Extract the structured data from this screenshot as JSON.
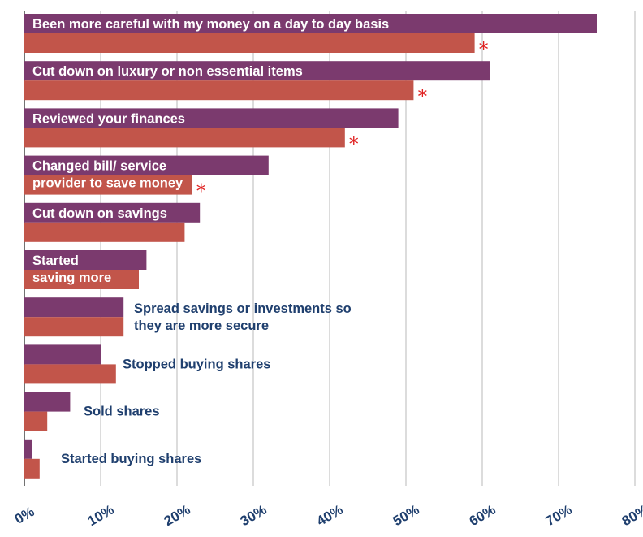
{
  "chart_data": {
    "type": "bar",
    "orientation": "horizontal",
    "xlim": [
      0,
      80
    ],
    "x_ticks": [
      "0%",
      "10%",
      "20%",
      "30%",
      "40%",
      "50%",
      "60%",
      "70%",
      "80%"
    ],
    "grid": true,
    "categories": [
      "Been more careful with my money on a day to day basis",
      "Cut down on luxury or non essential items",
      "Reviewed your finances",
      "Changed bill/ service provider to save money",
      "Cut down on savings",
      "Started saving more",
      "Spread savings or investments so they are more secure",
      "Stopped buying shares",
      "Sold shares",
      "Started buying shares"
    ],
    "series": [
      {
        "values": [
          75,
          61,
          49,
          32,
          23,
          16,
          13,
          10,
          6,
          1
        ]
      },
      {
        "values": [
          59,
          51,
          42,
          22,
          21,
          15,
          13,
          12,
          3,
          2
        ]
      }
    ],
    "significance_marker": "*",
    "significant_categories": [
      0,
      1,
      2,
      3
    ]
  },
  "colors": {
    "series_1": "#7b3a6e",
    "series_2": "#c2554a",
    "label_on_bar": "#ffffff",
    "label_outside": "#1f3f6e",
    "marker": "#e02020",
    "grid": "#b8b8b8",
    "axis": "#444444"
  }
}
